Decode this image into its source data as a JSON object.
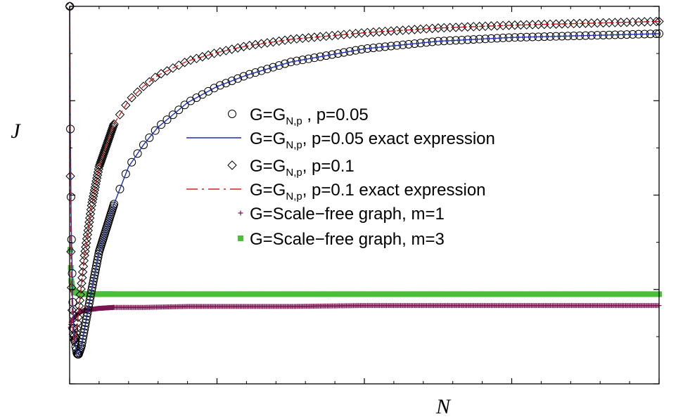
{
  "chart_data": {
    "type": "line",
    "xlabel": "N",
    "ylabel": "J",
    "xlim": [
      0,
      4000
    ],
    "ylim": [
      0.6,
      1.0
    ],
    "x_ticks": [
      "0",
      "1000",
      "2000",
      "3000",
      "4000"
    ],
    "y_ticks": [
      "0.6",
      "0.7",
      "0.8",
      "0.9",
      "1"
    ],
    "grid": false,
    "legend_position": "center-right",
    "series": [
      {
        "name": "G=G_{N,p} , p=0.05",
        "legend_parts": [
          "G=G",
          "N,p",
          " , p=0.05"
        ],
        "style": "circle-markers",
        "color": "#000000",
        "x": [
          1,
          5,
          10,
          20,
          30,
          40,
          50,
          60,
          80,
          100,
          150,
          200,
          300,
          400,
          500,
          600,
          800,
          1000,
          1200,
          1500,
          2000,
          2500,
          3000,
          3500,
          4000
        ],
        "y": [
          1.0,
          0.87,
          0.78,
          0.69,
          0.655,
          0.64,
          0.632,
          0.631,
          0.64,
          0.657,
          0.7,
          0.74,
          0.79,
          0.83,
          0.853,
          0.872,
          0.898,
          0.915,
          0.927,
          0.941,
          0.955,
          0.963,
          0.967,
          0.969,
          0.971
        ]
      },
      {
        "name": "G=G_{N,p}, p=0.05 exact expression",
        "legend_parts": [
          "G=G",
          "N,p",
          ", p=0.05 exact expression"
        ],
        "style": "solid-line",
        "color": "#1a2fb0",
        "x": [
          1,
          5,
          10,
          20,
          30,
          40,
          50,
          60,
          80,
          100,
          150,
          200,
          300,
          400,
          500,
          600,
          800,
          1000,
          1200,
          1500,
          2000,
          2500,
          3000,
          3500,
          4000
        ],
        "y": [
          1.0,
          0.87,
          0.78,
          0.69,
          0.655,
          0.64,
          0.632,
          0.631,
          0.64,
          0.657,
          0.7,
          0.74,
          0.79,
          0.83,
          0.853,
          0.872,
          0.898,
          0.915,
          0.927,
          0.941,
          0.955,
          0.963,
          0.967,
          0.969,
          0.971
        ]
      },
      {
        "name": "G=G_{N,p}, p=0.1",
        "legend_parts": [
          "G=G",
          "N,p",
          ", p=0.1"
        ],
        "style": "diamond-markers",
        "color": "#000000",
        "x": [
          1,
          5,
          10,
          20,
          30,
          40,
          50,
          60,
          80,
          100,
          150,
          200,
          300,
          400,
          500,
          600,
          800,
          1000,
          1200,
          1500,
          2000,
          2500,
          3000,
          3500,
          4000
        ],
        "y": [
          1.0,
          0.82,
          0.72,
          0.66,
          0.645,
          0.648,
          0.66,
          0.675,
          0.705,
          0.735,
          0.79,
          0.83,
          0.875,
          0.9,
          0.915,
          0.927,
          0.942,
          0.951,
          0.958,
          0.965,
          0.972,
          0.977,
          0.98,
          0.982,
          0.984
        ]
      },
      {
        "name": "G=G_{N,p}, p=0.1 exact expression",
        "legend_parts": [
          "G=G",
          "N,p",
          ", p=0.1 exact expression"
        ],
        "style": "dashed-line",
        "color": "#d42020",
        "x": [
          1,
          5,
          10,
          20,
          30,
          40,
          50,
          60,
          80,
          100,
          150,
          200,
          300,
          400,
          500,
          600,
          800,
          1000,
          1200,
          1500,
          2000,
          2500,
          3000,
          3500,
          4000
        ],
        "y": [
          1.0,
          0.82,
          0.72,
          0.66,
          0.645,
          0.648,
          0.66,
          0.675,
          0.705,
          0.735,
          0.79,
          0.83,
          0.875,
          0.9,
          0.915,
          0.927,
          0.942,
          0.951,
          0.958,
          0.965,
          0.972,
          0.977,
          0.98,
          0.982,
          0.984
        ]
      },
      {
        "name": "G=Scale−free graph, m=1",
        "legend_parts": [
          "G=Scale−free graph, m=1"
        ],
        "style": "plus-markers",
        "color": "#7a1550",
        "x": [
          5,
          10,
          20,
          40,
          60,
          100,
          150,
          200,
          300,
          500,
          800,
          1000,
          1500,
          2000,
          2500,
          3000,
          3500,
          4000
        ],
        "y": [
          0.66,
          0.665,
          0.668,
          0.672,
          0.675,
          0.678,
          0.679,
          0.68,
          0.681,
          0.681,
          0.682,
          0.682,
          0.682,
          0.683,
          0.683,
          0.683,
          0.683,
          0.683
        ]
      },
      {
        "name": "G=Scale−free graph, m=3",
        "legend_parts": [
          "G=Scale−free graph, m=3"
        ],
        "style": "square-markers",
        "color": "#4cbf3a",
        "x": [
          5,
          10,
          20,
          40,
          60,
          100,
          150,
          200,
          300,
          500,
          800,
          1000,
          1500,
          2000,
          2500,
          3000,
          3500,
          4000
        ],
        "y": [
          0.742,
          0.71,
          0.7,
          0.697,
          0.696,
          0.695,
          0.695,
          0.695,
          0.695,
          0.695,
          0.695,
          0.695,
          0.695,
          0.695,
          0.695,
          0.695,
          0.695,
          0.695
        ]
      }
    ]
  }
}
